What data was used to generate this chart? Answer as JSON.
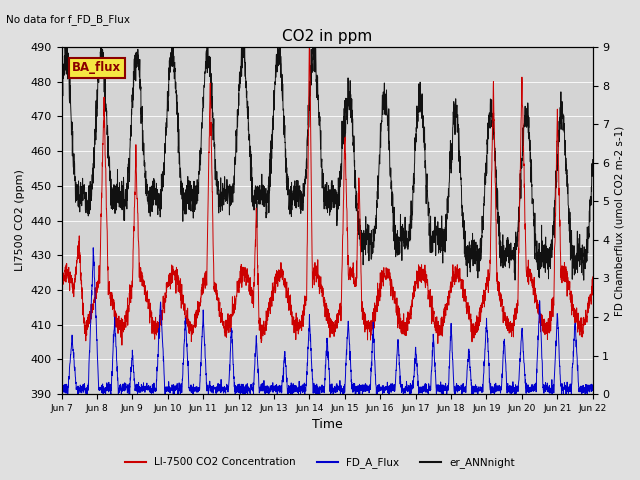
{
  "title": "CO2 in ppm",
  "top_left_text": "No data for f_FD_B_Flux",
  "annotation_box": "BA_flux",
  "xlabel": "Time",
  "ylabel_left": "LI7500 CO2 (ppm)",
  "ylabel_right": "FD Chamberflux (umol CO2 m-2 s-1)",
  "ylim_left": [
    390,
    490
  ],
  "ylim_right": [
    0.0,
    9.0
  ],
  "yticks_left": [
    390,
    400,
    410,
    420,
    430,
    440,
    450,
    460,
    470,
    480,
    490
  ],
  "yticks_right": [
    0.0,
    1.0,
    2.0,
    3.0,
    4.0,
    5.0,
    6.0,
    7.0,
    8.0,
    9.0
  ],
  "xtick_labels": [
    "Jun 7",
    "Jun 8",
    "Jun 9",
    "Jun 10",
    "Jun 11",
    "Jun 12",
    "Jun 13",
    "Jun 14",
    "Jun 15",
    "Jun 16",
    "Jun 17",
    "Jun 18",
    "Jun 19",
    "Jun 20",
    "Jun 21",
    "Jun 22"
  ],
  "color_red": "#cc0000",
  "color_blue": "#0000cc",
  "color_black": "#111111",
  "legend_labels": [
    "LI-7500 CO2 Concentration",
    "FD_A_Flux",
    "er_ANNnight"
  ],
  "bg_color": "#e0e0e0",
  "plot_bg_color": "#d4d4d4"
}
